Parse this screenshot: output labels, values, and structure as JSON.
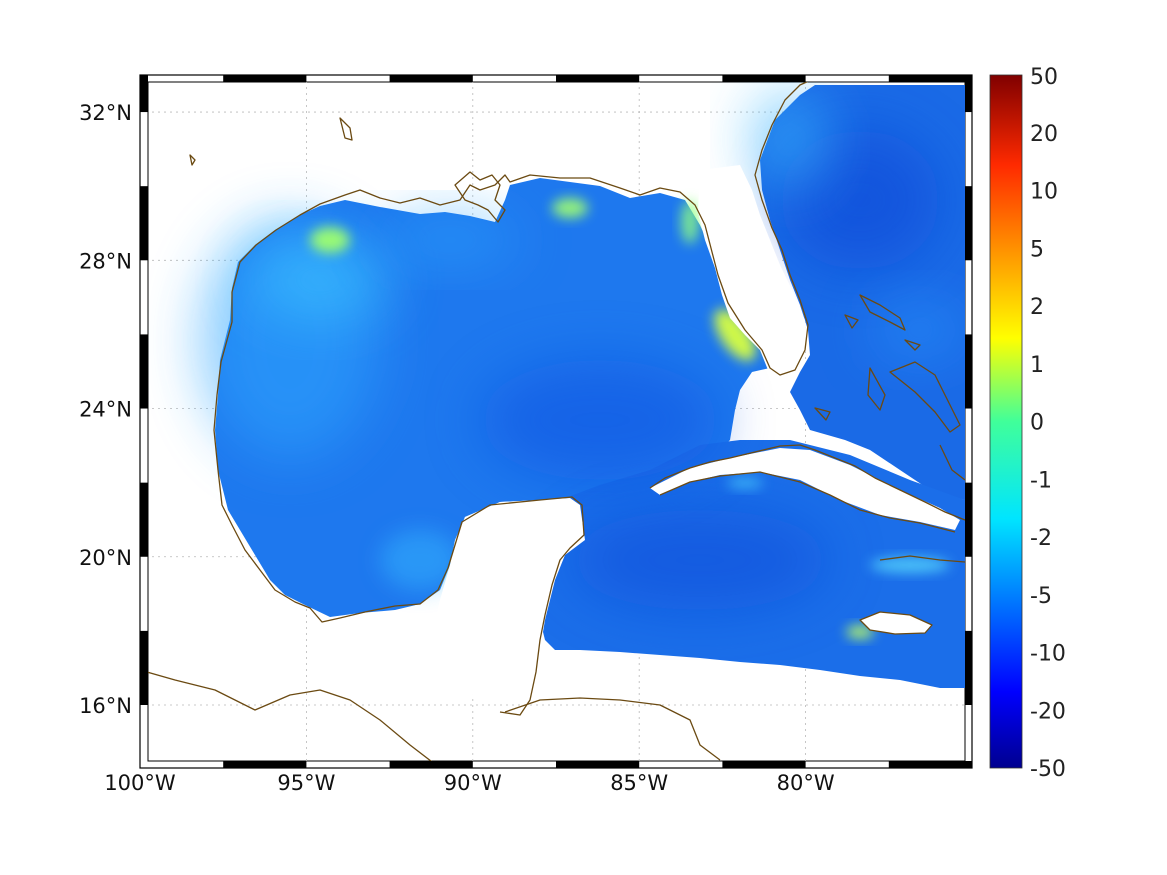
{
  "map": {
    "region": "Gulf of Mexico and Caribbean",
    "lon_range": [
      -100,
      -75
    ],
    "lat_range": [
      14.3,
      33
    ],
    "lon_ticks": [
      {
        "value": -100,
        "label": "100°W"
      },
      {
        "value": -95,
        "label": "95°W"
      },
      {
        "value": -90,
        "label": "90°W"
      },
      {
        "value": -85,
        "label": "85°W"
      },
      {
        "value": -80,
        "label": "80°W"
      }
    ],
    "lat_ticks": [
      {
        "value": 32,
        "label": "32°N"
      },
      {
        "value": 28,
        "label": "28°N"
      },
      {
        "value": 24,
        "label": "24°N"
      },
      {
        "value": 20,
        "label": "20°N"
      },
      {
        "value": 16,
        "label": "16°N"
      }
    ],
    "grid": true,
    "coastline_color": "#6b4a12",
    "frame_style": "alternating black/white border"
  },
  "colorbar": {
    "position": "right",
    "colormap": "jet",
    "tick_labels": [
      "50",
      "20",
      "10",
      "5",
      "2",
      "1",
      "0",
      "-1",
      "-2",
      "-5",
      "-10",
      "-20",
      "-50"
    ]
  }
}
